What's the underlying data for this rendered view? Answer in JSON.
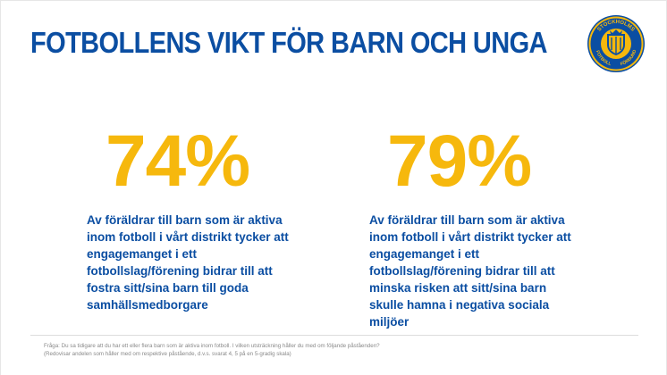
{
  "slide": {
    "title": "FOTBOLLENS VIKT FÖR BARN OCH UNGA",
    "logo": {
      "icon": "stockholms-fotbollforbund-crest-icon",
      "text_top": "STOCKHOLMS",
      "text_bottom_left": "FOTBOLL",
      "text_bottom_right": "FÖRBUND",
      "colors": {
        "ring": "#0b4ea2",
        "fill": "#f6b80d"
      }
    },
    "stats": [
      {
        "value": "74%",
        "description": "Av föräldrar till barn som är aktiva inom fotboll i vårt distrikt tycker att engagemanget i ett fotbollslag/förening bidrar till att fostra sitt/sina barn till goda samhällsmedborgare"
      },
      {
        "value": "79%",
        "description": "Av föräldrar till barn som är aktiva inom fotboll i vårt distrikt tycker att engagemanget i ett fotbollslag/förening bidrar till att minska risken att sitt/sina barn skulle hamna i negativa sociala miljöer"
      }
    ],
    "footnote": {
      "line1": "Fråga: Du sa tidigare att du har ett eller flera barn som är aktiva inom fotboll. I vilken utsträckning håller du med om följande påståenden?",
      "line2": "(Redovisar andelen som håller med om respektive påstående, d.v.s. svarat 4, 5 på en 5-gradig skala)"
    },
    "colors": {
      "title": "#0b4ea2",
      "stat": "#f6b80d",
      "text": "#0b4ea2"
    }
  }
}
